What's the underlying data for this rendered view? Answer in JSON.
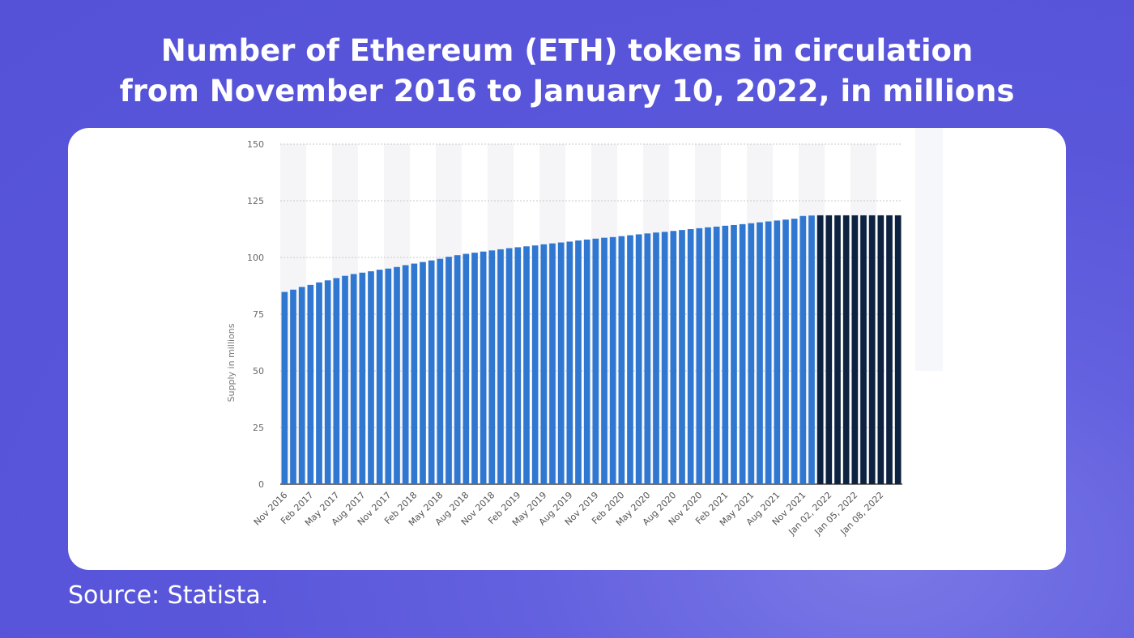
{
  "title_line1": "Number of Ethereum (ETH) tokens in circulation",
  "title_line2": "from November 2016 to January 10, 2022, in millions",
  "source": "Source: Statista.",
  "colors": {
    "background": "#5754d9",
    "monthly_bar": "#2f77d0",
    "daily_bar": "#0d2240",
    "band": "#f5f5f7"
  },
  "chart_data": {
    "type": "bar",
    "title": "",
    "xlabel": "",
    "ylabel": "Supply in millions",
    "ylim": [
      0,
      150
    ],
    "yticks": [
      0,
      25,
      50,
      75,
      100,
      125,
      150
    ],
    "grid": true,
    "categories": [
      "Nov 2016",
      "Dec 2016",
      "Jan 2017",
      "Feb 2017",
      "Mar 2017",
      "Apr 2017",
      "May 2017",
      "Jun 2017",
      "Jul 2017",
      "Aug 2017",
      "Sep 2017",
      "Oct 2017",
      "Nov 2017",
      "Dec 2017",
      "Jan 2018",
      "Feb 2018",
      "Mar 2018",
      "Apr 2018",
      "May 2018",
      "Jun 2018",
      "Jul 2018",
      "Aug 2018",
      "Sep 2018",
      "Oct 2018",
      "Nov 2018",
      "Dec 2018",
      "Jan 2019",
      "Feb 2019",
      "Mar 2019",
      "Apr 2019",
      "May 2019",
      "Jun 2019",
      "Jul 2019",
      "Aug 2019",
      "Sep 2019",
      "Oct 2019",
      "Nov 2019",
      "Dec 2019",
      "Jan 2020",
      "Feb 2020",
      "Mar 2020",
      "Apr 2020",
      "May 2020",
      "Jun 2020",
      "Jul 2020",
      "Aug 2020",
      "Sep 2020",
      "Oct 2020",
      "Nov 2020",
      "Dec 2020",
      "Jan 2021",
      "Feb 2021",
      "Mar 2021",
      "Apr 2021",
      "May 2021",
      "Jun 2021",
      "Jul 2021",
      "Aug 2021",
      "Sep 2021",
      "Oct 2021",
      "Nov 2021",
      "Dec 2021",
      "Jan 01, 2022",
      "Jan 02, 2022",
      "Jan 03, 2022",
      "Jan 04, 2022",
      "Jan 05, 2022",
      "Jan 06, 2022",
      "Jan 07, 2022",
      "Jan 08, 2022",
      "Jan 09, 2022",
      "Jan 10, 2022"
    ],
    "values": [
      84.8,
      85.8,
      87.0,
      87.9,
      89.0,
      89.9,
      90.9,
      91.9,
      92.7,
      93.3,
      93.9,
      94.6,
      95.1,
      95.8,
      96.6,
      97.3,
      98.0,
      98.7,
      99.4,
      100.3,
      101.0,
      101.6,
      102.1,
      102.6,
      103.1,
      103.6,
      104.1,
      104.5,
      104.9,
      105.3,
      105.8,
      106.2,
      106.6,
      107.0,
      107.5,
      107.9,
      108.3,
      108.7,
      109.0,
      109.4,
      109.8,
      110.2,
      110.6,
      111.0,
      111.3,
      111.7,
      112.1,
      112.5,
      112.9,
      113.3,
      113.6,
      114.0,
      114.3,
      114.7,
      115.1,
      115.5,
      115.9,
      116.3,
      116.7,
      117.1,
      118.3,
      118.5,
      118.6,
      118.6,
      118.6,
      118.6,
      118.6,
      118.6,
      118.6,
      118.6,
      118.6,
      118.6
    ],
    "xtick_labels": [
      "Nov 2016",
      "Feb 2017",
      "May 2017",
      "Aug 2017",
      "Nov 2017",
      "Feb 2018",
      "May 2018",
      "Aug 2018",
      "Nov 2018",
      "Feb 2019",
      "May 2019",
      "Aug 2019",
      "Nov 2019",
      "Feb 2020",
      "May 2020",
      "Aug 2020",
      "Nov 2020",
      "Feb 2021",
      "May 2021",
      "Aug 2021",
      "Nov 2021",
      "Jan 02, 2022",
      "Jan 05, 2022",
      "Jan 08, 2022"
    ]
  }
}
